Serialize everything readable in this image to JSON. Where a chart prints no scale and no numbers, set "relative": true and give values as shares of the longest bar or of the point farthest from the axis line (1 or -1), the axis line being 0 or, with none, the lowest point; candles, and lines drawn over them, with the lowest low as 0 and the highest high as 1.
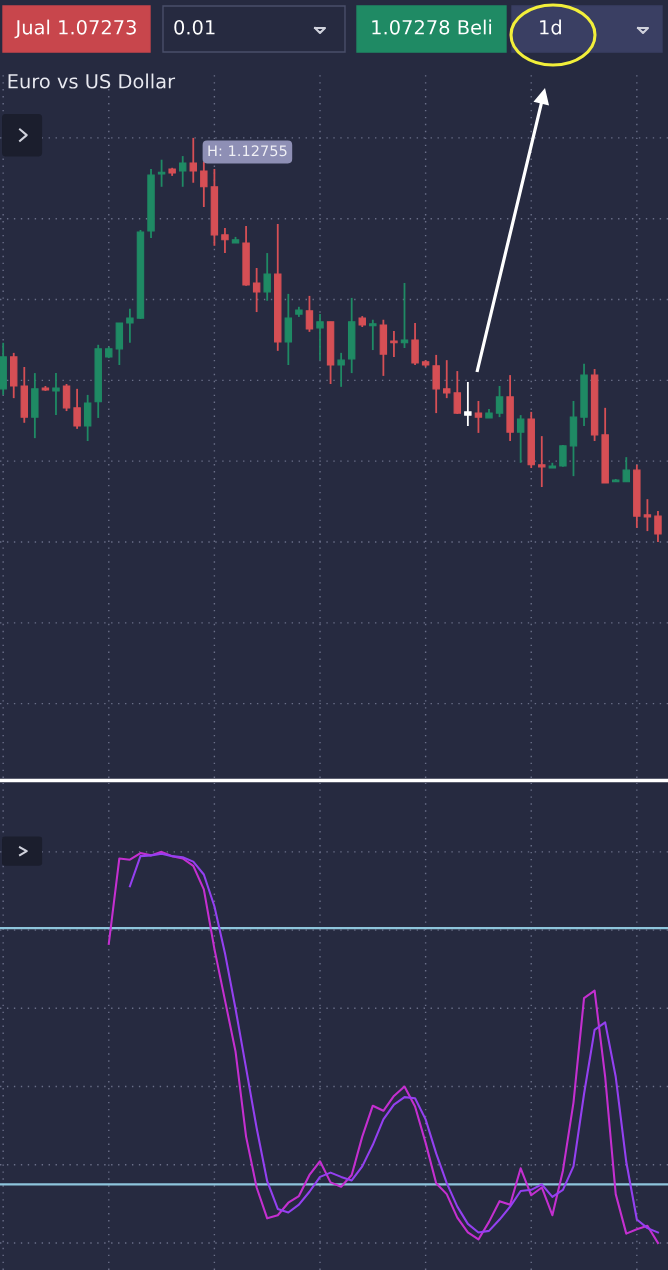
{
  "chart_data": [
    {
      "type": "candlestick",
      "title": "Euro vs US Dollar",
      "relative": true,
      "grid": true,
      "categories": [
        null,
        null,
        null,
        null,
        null,
        null,
        null,
        null,
        null,
        null,
        null,
        null,
        null,
        null,
        null,
        null,
        null,
        null,
        null,
        null,
        null,
        null,
        null,
        null,
        null,
        null,
        null,
        null,
        null,
        null,
        null,
        null,
        null,
        null,
        null,
        null,
        null,
        null,
        null,
        null,
        null,
        null,
        null,
        null,
        null,
        null,
        null,
        null,
        null,
        null,
        null,
        null,
        null,
        null,
        null,
        null,
        null,
        null,
        null,
        null,
        null,
        null,
        null
      ],
      "ohlc": [
        [
          0.379,
          0.493,
          0.364,
          0.458
        ],
        [
          0.458,
          0.468,
          0.356,
          0.386
        ],
        [
          0.386,
          0.433,
          0.295,
          0.309
        ],
        [
          0.309,
          0.418,
          0.257,
          0.379
        ],
        [
          0.381,
          0.386,
          0.374,
          0.376
        ],
        [
          0.374,
          0.418,
          0.314,
          0.381
        ],
        [
          0.386,
          0.391,
          0.324,
          0.332
        ],
        [
          0.332,
          0.379,
          0.28,
          0.287
        ],
        [
          0.287,
          0.364,
          0.25,
          0.344
        ],
        [
          0.347,
          0.488,
          0.307,
          0.478
        ],
        [
          0.458,
          0.483,
          0.455,
          0.478
        ],
        [
          0.478,
          0.542,
          0.438,
          0.542
        ],
        [
          0.542,
          0.577,
          0.493,
          0.554
        ],
        [
          0.554,
          0.772,
          0.552,
          0.767
        ],
        [
          0.77,
          0.923,
          0.752,
          0.908
        ],
        [
          0.911,
          0.946,
          0.879,
          0.913
        ],
        [
          0.923,
          0.926,
          0.906,
          0.913
        ],
        [
          0.918,
          0.955,
          0.879,
          0.938
        ],
        [
          0.938,
          1.0,
          0.889,
          0.918
        ],
        [
          0.918,
          0.941,
          0.829,
          0.879
        ],
        [
          0.879,
          0.923,
          0.733,
          0.76
        ],
        [
          0.76,
          0.777,
          0.715,
          0.748
        ],
        [
          0.74,
          0.755,
          0.74,
          0.748
        ],
        [
          0.74,
          0.782,
          0.634,
          0.636
        ],
        [
          0.641,
          0.678,
          0.569,
          0.619
        ],
        [
          0.619,
          0.715,
          0.597,
          0.663
        ],
        [
          0.663,
          0.787,
          0.473,
          0.495
        ],
        [
          0.495,
          0.614,
          0.438,
          0.554
        ],
        [
          0.564,
          0.582,
          0.557,
          0.574
        ],
        [
          0.572,
          0.609,
          0.52,
          0.527
        ],
        [
          0.53,
          0.564,
          0.45,
          0.545
        ],
        [
          0.545,
          0.545,
          0.391,
          0.438
        ],
        [
          0.438,
          0.468,
          0.384,
          0.45
        ],
        [
          0.453,
          0.604,
          0.418,
          0.545
        ],
        [
          0.554,
          0.559,
          0.532,
          0.537
        ],
        [
          0.535,
          0.55,
          0.475,
          0.54
        ],
        [
          0.537,
          0.55,
          0.411,
          0.465
        ],
        [
          0.495,
          0.522,
          0.458,
          0.493
        ],
        [
          0.493,
          0.641,
          0.48,
          0.5
        ],
        [
          0.5,
          0.542,
          0.438,
          0.443
        ],
        [
          0.446,
          0.45,
          0.433,
          0.438
        ],
        [
          0.436,
          0.463,
          0.319,
          0.379
        ],
        [
          0.379,
          0.45,
          0.356,
          0.369
        ],
        [
          0.369,
          0.423,
          0.317,
          0.319
        ],
        [
          0.322,
          0.396,
          0.287,
          0.314
        ],
        [
          0.319,
          0.349,
          0.27,
          0.309
        ],
        [
          0.307,
          0.329,
          0.307,
          0.319
        ],
        [
          0.319,
          0.386,
          0.309,
          0.359
        ],
        [
          0.359,
          0.413,
          0.25,
          0.272
        ],
        [
          0.272,
          0.314,
          0.196,
          0.304
        ],
        [
          0.304,
          0.322,
          0.183,
          0.191
        ],
        [
          0.191,
          0.262,
          0.136,
          0.186
        ],
        [
          0.183,
          0.196,
          0.183,
          0.188
        ],
        [
          0.188,
          0.24,
          0.186,
          0.238
        ],
        [
          0.238,
          0.349,
          0.163,
          0.309
        ],
        [
          0.309,
          0.441,
          0.287,
          0.413
        ],
        [
          0.413,
          0.428,
          0.25,
          0.265
        ],
        [
          0.265,
          0.332,
          0.146,
          0.146
        ],
        [
          0.149,
          0.156,
          0.149,
          0.151
        ],
        [
          0.149,
          0.21,
          0.149,
          0.178
        ],
        [
          0.178,
          0.191,
          0.035,
          0.064
        ],
        [
          0.067,
          0.106,
          0.027,
          0.062
        ],
        [
          0.064,
          0.077,
          0.0,
          0.02
        ]
      ],
      "colors": [
        "#1f8a64",
        "#d64f55",
        "#d64f55",
        "#1f8a64",
        "#d64f55",
        "#1f8a64",
        "#d64f55",
        "#d64f55",
        "#1f8a64",
        "#1f8a64",
        "#1f8a64",
        "#1f8a64",
        "#1f8a64",
        "#1f8a64",
        "#1f8a64",
        "#1f8a64",
        "#d64f55",
        "#1f8a64",
        "#d64f55",
        "#d64f55",
        "#d64f55",
        "#d64f55",
        "#1f8a64",
        "#d64f55",
        "#d64f55",
        "#1f8a64",
        "#d64f55",
        "#1f8a64",
        "#1f8a64",
        "#d64f55",
        "#1f8a64",
        "#d64f55",
        "#1f8a64",
        "#1f8a64",
        "#d64f55",
        "#1f8a64",
        "#d64f55",
        "#d64f55",
        "#1f8a64",
        "#d64f55",
        "#d64f55",
        "#d64f55",
        "#d64f55",
        "#d64f55",
        "#ffffff",
        "#d64f55",
        "#1f8a64",
        "#1f8a64",
        "#d64f55",
        "#1f8a64",
        "#d64f55",
        "#d64f55",
        "#1f8a64",
        "#1f8a64",
        "#1f8a64",
        "#1f8a64",
        "#d64f55",
        "#d64f55",
        "#1f8a64",
        "#1f8a64",
        "#d64f55",
        "#d64f55",
        "#d64f55"
      ],
      "annotations": [
        "Jual 1.07273",
        "0.01",
        "1.07278 Beli",
        "1d",
        "H: 1.12755"
      ]
    },
    {
      "type": "line",
      "relative": true,
      "grid": true,
      "categories": [
        null,
        null,
        null,
        null,
        null,
        null,
        null,
        null,
        null,
        null,
        null,
        null,
        null,
        null,
        null,
        null,
        null,
        null,
        null,
        null,
        null,
        null,
        null,
        null,
        null,
        null,
        null,
        null,
        null,
        null,
        null,
        null,
        null,
        null,
        null,
        null,
        null,
        null,
        null,
        null,
        null,
        null,
        null,
        null,
        null,
        null,
        null,
        null,
        null,
        null,
        null,
        null,
        null,
        null,
        null,
        null,
        null,
        null,
        null,
        null,
        null,
        null,
        null
      ],
      "series": [
        {
          "color": "#c42fd0",
          "values": [
            null,
            null,
            null,
            null,
            null,
            null,
            null,
            null,
            null,
            null,
            0.765,
            0.983,
            0.98,
            0.997,
            0.991,
            1.0,
            0.989,
            0.983,
            0.964,
            0.904,
            0.752,
            0.621,
            0.49,
            0.272,
            0.142,
            0.063,
            0.071,
            0.103,
            0.12,
            0.174,
            0.209,
            0.155,
            0.144,
            0.174,
            0.272,
            0.351,
            0.338,
            0.376,
            0.4,
            0.349,
            0.256,
            0.153,
            0.125,
            0.065,
            0.027,
            0.009,
            0.054,
            0.107,
            0.098,
            0.191,
            0.122,
            0.142,
            0.071,
            0.185,
            0.359,
            0.626,
            0.645,
            0.425,
            0.125,
            0.024,
            0.035,
            0.044,
            0.0
          ]
        },
        {
          "color": "#9440f0",
          "values": [
            null,
            null,
            null,
            null,
            null,
            null,
            null,
            null,
            null,
            null,
            null,
            null,
            0.912,
            0.989,
            0.991,
            0.995,
            0.989,
            0.986,
            0.975,
            0.942,
            0.861,
            0.741,
            0.599,
            0.447,
            0.294,
            0.158,
            0.087,
            0.078,
            0.098,
            0.131,
            0.169,
            0.18,
            0.169,
            0.16,
            0.196,
            0.251,
            0.316,
            0.354,
            0.373,
            0.37,
            0.316,
            0.229,
            0.153,
            0.093,
            0.049,
            0.027,
            0.031,
            0.06,
            0.093,
            0.133,
            0.136,
            0.15,
            0.118,
            0.136,
            0.196,
            0.381,
            0.545,
            0.564,
            0.425,
            0.207,
            0.06,
            0.038,
            0.027
          ]
        }
      ],
      "ref_lines": [
        {
          "axis": "y",
          "value": 0.805,
          "color": "#8ec5dc"
        },
        {
          "axis": "y",
          "value": 0.15,
          "color": "#8ec5dc"
        }
      ]
    }
  ]
}
